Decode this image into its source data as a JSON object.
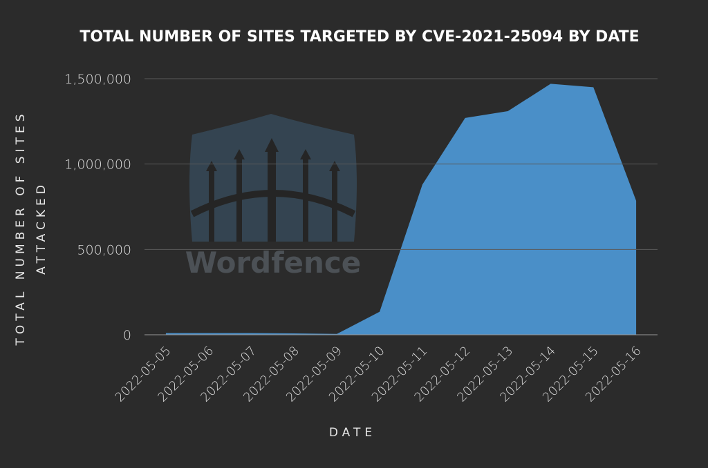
{
  "chart_data": {
    "type": "area",
    "title": "TOTAL NUMBER OF SITES TARGETED BY CVE-2021-25094 BY DATE",
    "x_label": "DATE",
    "y_label": "TOTAL NUMBER OF SITES ATTACKED",
    "watermark": "Wordfence",
    "categories": [
      "2022-05-05",
      "2022-05-06",
      "2022-05-07",
      "2022-05-08",
      "2022-05-09",
      "2022-05-10",
      "2022-05-11",
      "2022-05-12",
      "2022-05-13",
      "2022-05-14",
      "2022-05-15",
      "2022-05-16"
    ],
    "values": [
      10000,
      10000,
      10000,
      8000,
      5000,
      135000,
      880000,
      1270000,
      1310000,
      1470000,
      1450000,
      785000
    ],
    "color": "#4a8fc8",
    "ylim": [
      0,
      1500000
    ],
    "yticks": [
      0,
      {
        "value": 500000,
        "label": "500,000"
      },
      {
        "value": 1000000,
        "label": "1,000,000"
      },
      {
        "value": 1500000,
        "label": "1,500,000"
      }
    ],
    "grid": true
  }
}
